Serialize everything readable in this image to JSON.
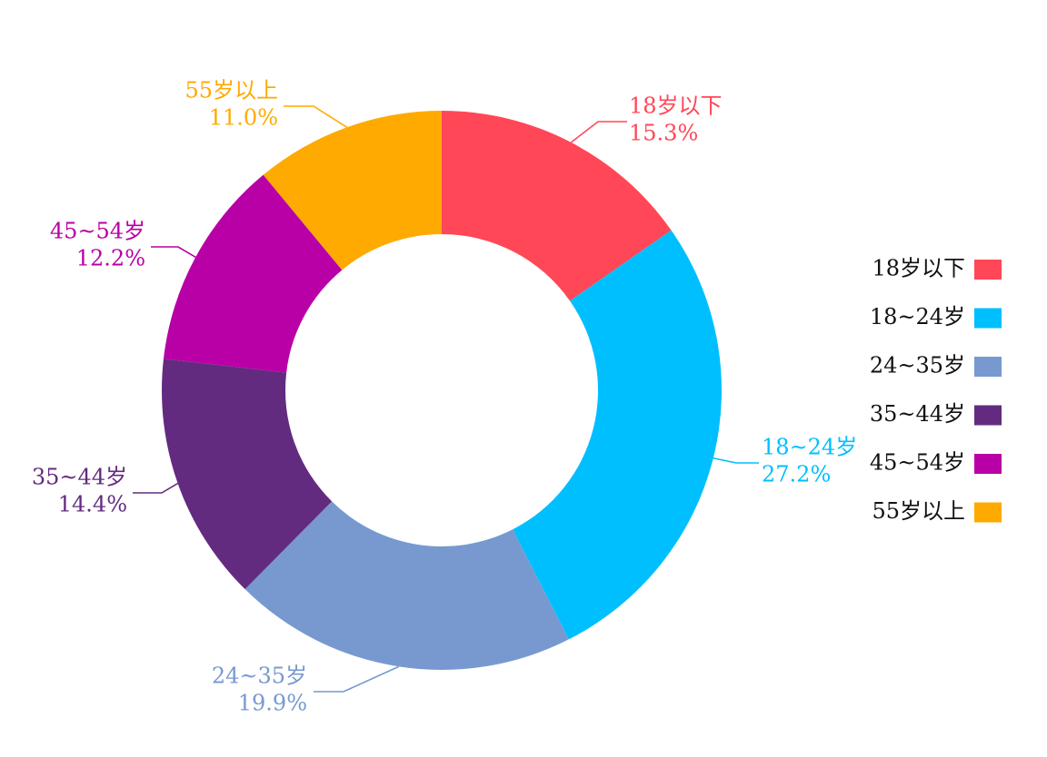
{
  "chart_data": {
    "type": "pie",
    "variant": "donut",
    "title": "",
    "legend_position": "right",
    "slices": [
      {
        "label": "18岁以下",
        "value": 15.3,
        "pct_label": "15.3%",
        "color": "#FF4757"
      },
      {
        "label": "18~24岁",
        "value": 27.2,
        "pct_label": "27.2%",
        "color": "#00BFFF"
      },
      {
        "label": "24~35岁",
        "value": 19.9,
        "pct_label": "19.9%",
        "color": "#7799D0"
      },
      {
        "label": "35~44岁",
        "value": 14.4,
        "pct_label": "14.4%",
        "color": "#632B80"
      },
      {
        "label": "45~54岁",
        "value": 12.2,
        "pct_label": "12.2%",
        "color": "#B800A6"
      },
      {
        "label": "55岁以上",
        "value": 11.0,
        "pct_label": "11.0%",
        "color": "#FFAA00"
      }
    ]
  }
}
